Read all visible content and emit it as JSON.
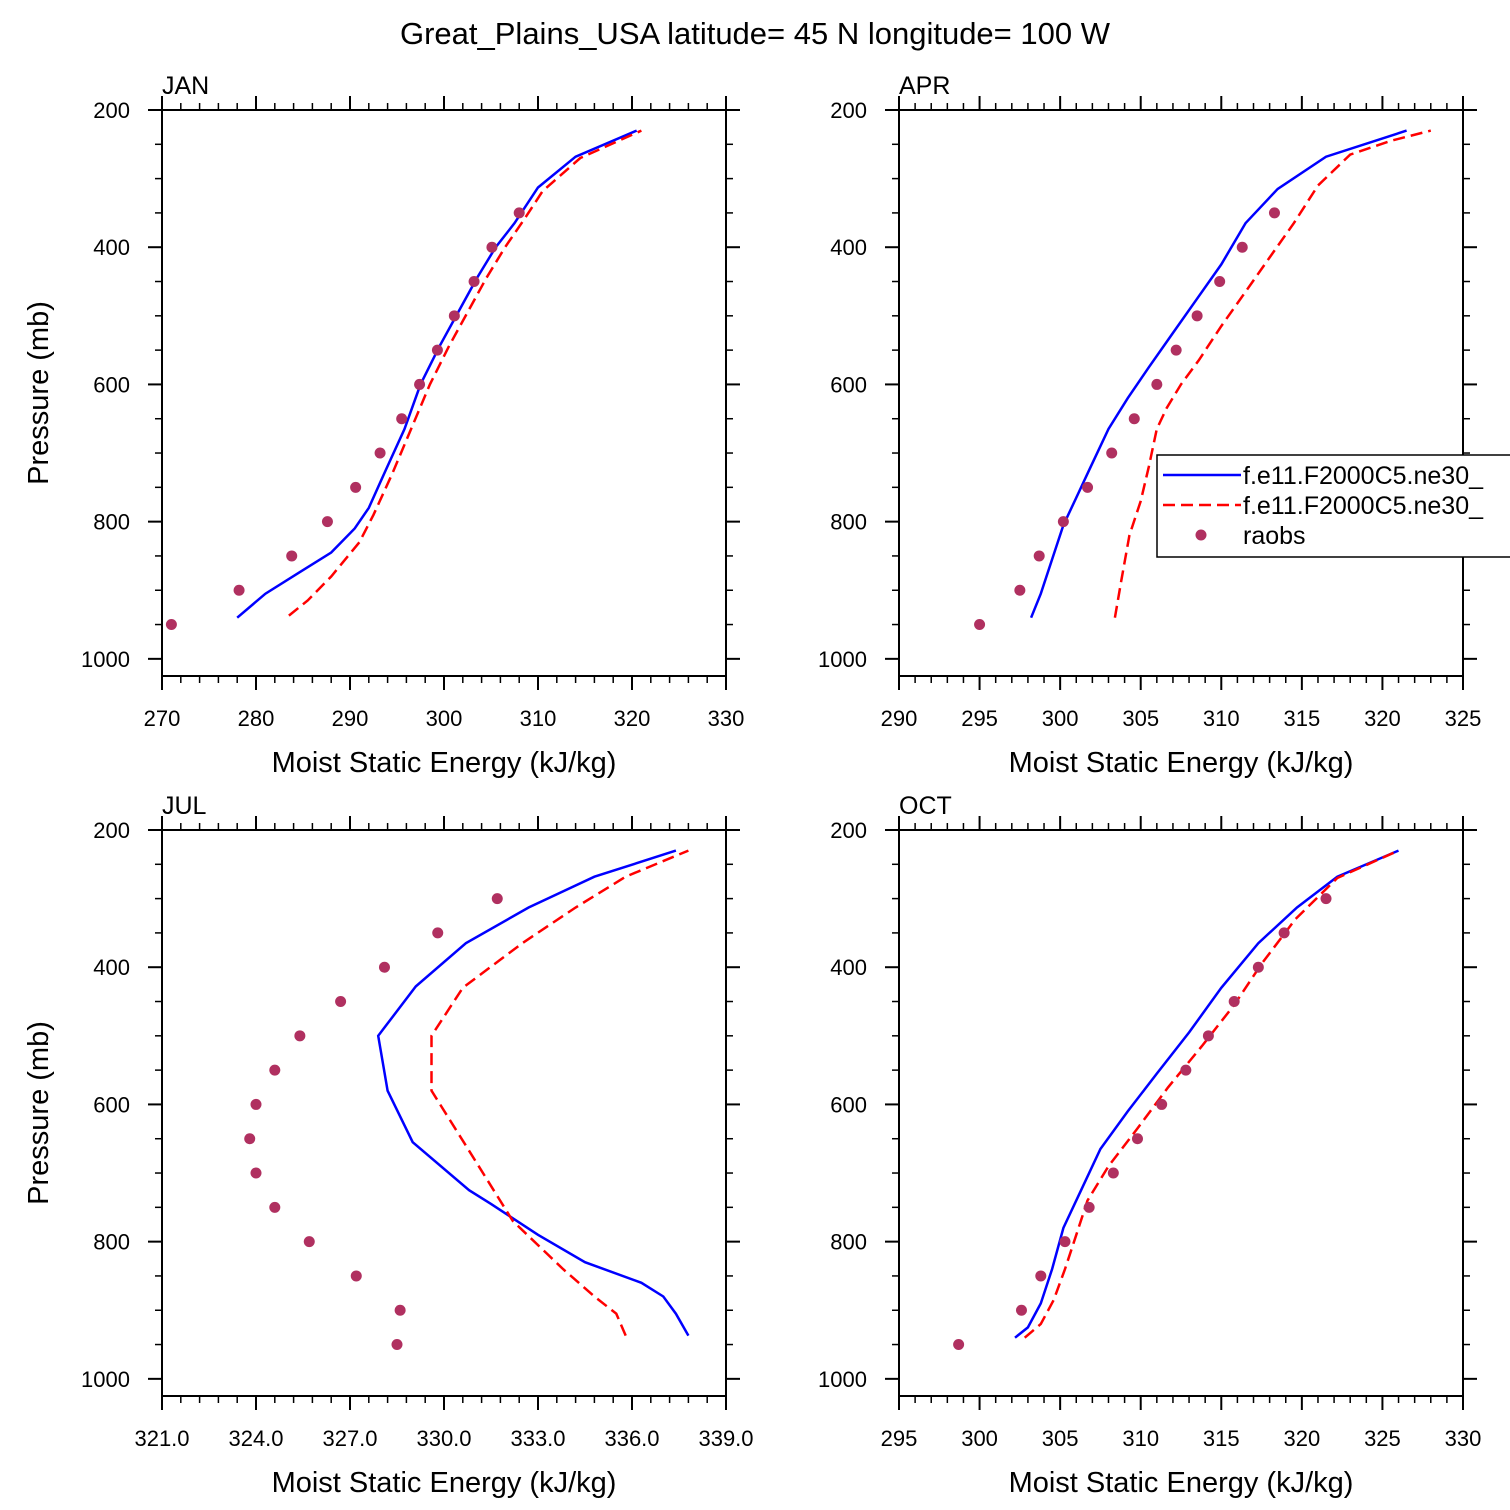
{
  "title": "Great_Plains_USA  latitude= 45 N longitude= 100 W",
  "colors": {
    "model1": "#0000ff",
    "model2": "#ff0000",
    "raobs": "#b03060",
    "axis": "#000000"
  },
  "legend": {
    "location": "right of APR panel",
    "entries": [
      {
        "label": "f.e11.F2000C5.ne30_",
        "style": "solid",
        "color": "#0000ff"
      },
      {
        "label": "f.e11.F2000C5.ne30_",
        "style": "dashed",
        "color": "#ff0000"
      },
      {
        "label": "raobs",
        "style": "marker",
        "color": "#b03060"
      }
    ]
  },
  "chart_data": [
    {
      "type": "line",
      "panel": "JAN",
      "title": "JAN",
      "xlabel": "Moist Static Energy (kJ/kg)",
      "ylabel": "Pressure (mb)",
      "xlim": [
        270,
        330
      ],
      "ylim": [
        1025,
        200
      ],
      "y_reversed": true,
      "xticks": [
        270,
        280,
        290,
        300,
        310,
        320,
        330
      ],
      "xtick_labels": [
        "270",
        "280",
        "290",
        "300",
        "310",
        "320",
        "330"
      ],
      "yticks": [
        200,
        400,
        600,
        800,
        1000
      ],
      "ytick_labels": [
        "200",
        "400",
        "600",
        "800",
        "1000"
      ],
      "series": [
        {
          "name": "f.e11.F2000C5.ne30_ (solid)",
          "style": "solid",
          "color": "#0000ff",
          "x": [
            278.0,
            281.0,
            284.5,
            288.0,
            290.5,
            292.0,
            293.8,
            295.8,
            297.5,
            299.5,
            301.5,
            303.5,
            305.5,
            307.5,
            310.0,
            314.0,
            320.5
          ],
          "y": [
            940,
            905,
            875,
            845,
            810,
            780,
            725,
            665,
            600,
            545,
            495,
            445,
            400,
            365,
            313,
            268,
            230
          ]
        },
        {
          "name": "f.e11.F2000C5.ne30_ (dashed)",
          "style": "dashed",
          "color": "#ff0000",
          "x": [
            283.5,
            285.5,
            288.0,
            291.0,
            292.5,
            294.5,
            296.5,
            298.5,
            300.5,
            302.5,
            304.5,
            306.5,
            308.5,
            310.5,
            314.5,
            321.0
          ],
          "y": [
            937,
            915,
            880,
            830,
            790,
            730,
            665,
            600,
            545,
            495,
            445,
            400,
            360,
            318,
            270,
            230
          ]
        }
      ],
      "points": {
        "name": "raobs",
        "x": [
          271.0,
          278.2,
          283.8,
          287.6,
          290.6,
          293.2,
          295.5,
          297.4,
          299.3,
          301.1,
          303.2,
          305.1,
          308.0
        ],
        "y": [
          950,
          900,
          850,
          800,
          750,
          700,
          650,
          600,
          550,
          500,
          450,
          400,
          350
        ]
      }
    },
    {
      "type": "line",
      "panel": "APR",
      "title": "APR",
      "xlabel": "Moist Static Energy (kJ/kg)",
      "ylabel": "",
      "xlim": [
        290,
        325
      ],
      "ylim": [
        1025,
        200
      ],
      "y_reversed": true,
      "xticks": [
        290,
        295,
        300,
        305,
        310,
        315,
        320,
        325
      ],
      "xtick_labels": [
        "290",
        "295",
        "300",
        "305",
        "310",
        "315",
        "320",
        "325"
      ],
      "yticks": [
        200,
        400,
        600,
        800,
        1000
      ],
      "ytick_labels": [
        "200",
        "400",
        "600",
        "800",
        "1000"
      ],
      "series": [
        {
          "name": "f.e11.F2000C5.ne30_ (solid)",
          "style": "solid",
          "color": "#0000ff",
          "x": [
            298.2,
            298.8,
            299.5,
            300.2,
            301.0,
            301.8,
            303.0,
            304.2,
            305.5,
            307.0,
            308.5,
            310.0,
            311.5,
            313.5,
            316.5,
            321.5
          ],
          "y": [
            940,
            905,
            855,
            805,
            765,
            725,
            665,
            620,
            575,
            525,
            475,
            425,
            365,
            315,
            268,
            230
          ]
        },
        {
          "name": "f.e11.F2000C5.ne30_ (dashed)",
          "style": "dashed",
          "color": "#ff0000",
          "x": [
            303.4,
            303.8,
            304.3,
            305.0,
            305.5,
            306.0,
            306.6,
            307.5,
            308.6,
            310.0,
            311.5,
            313.0,
            314.5,
            316.0,
            318.0,
            320.5,
            323.0
          ],
          "y": [
            940,
            885,
            820,
            770,
            720,
            665,
            635,
            600,
            565,
            515,
            465,
            415,
            365,
            310,
            265,
            245,
            230
          ]
        }
      ],
      "points": {
        "name": "raobs",
        "x": [
          295.0,
          297.5,
          298.7,
          300.2,
          301.7,
          303.2,
          304.6,
          306.0,
          307.2,
          308.5,
          309.9,
          311.3,
          313.3
        ],
        "y": [
          950,
          900,
          850,
          800,
          750,
          700,
          650,
          600,
          550,
          500,
          450,
          400,
          350
        ]
      }
    },
    {
      "type": "line",
      "panel": "JUL",
      "title": "JUL",
      "xlabel": "Moist Static Energy (kJ/kg)",
      "ylabel": "Pressure (mb)",
      "xlim": [
        321.0,
        339.0
      ],
      "ylim": [
        1025,
        200
      ],
      "y_reversed": true,
      "xticks": [
        321,
        324,
        327,
        330,
        333,
        336,
        339
      ],
      "xtick_labels": [
        "321.0",
        "324.0",
        "327.0",
        "330.0",
        "333.0",
        "336.0",
        "339.0"
      ],
      "yticks": [
        200,
        400,
        600,
        800,
        1000
      ],
      "ytick_labels": [
        "200",
        "400",
        "600",
        "800",
        "1000"
      ],
      "series": [
        {
          "name": "f.e11.F2000C5.ne30_ (solid)",
          "style": "solid",
          "color": "#0000ff",
          "x": [
            337.8,
            337.4,
            337.0,
            336.3,
            334.5,
            333.0,
            331.5,
            330.8,
            329.0,
            328.2,
            327.9,
            329.1,
            330.7,
            332.7,
            334.8,
            337.4
          ],
          "y": [
            937,
            905,
            880,
            860,
            830,
            790,
            745,
            725,
            655,
            580,
            500,
            428,
            365,
            313,
            268,
            230
          ]
        },
        {
          "name": "f.e11.F2000C5.ne30_ (dashed)",
          "style": "dashed",
          "color": "#ff0000",
          "x": [
            335.8,
            335.5,
            334.8,
            333.8,
            332.2,
            330.7,
            329.6,
            329.6,
            330.6,
            332.5,
            334.2,
            335.8,
            337.8
          ],
          "y": [
            937,
            905,
            880,
            840,
            770,
            660,
            580,
            500,
            430,
            365,
            313,
            268,
            230
          ]
        }
      ],
      "points": {
        "name": "raobs",
        "x": [
          328.5,
          328.6,
          327.2,
          325.7,
          324.6,
          324.0,
          323.8,
          324.0,
          324.6,
          325.4,
          326.7,
          328.1,
          329.8,
          331.7
        ],
        "y": [
          950,
          900,
          850,
          800,
          750,
          700,
          650,
          600,
          550,
          500,
          450,
          400,
          350,
          300
        ]
      }
    },
    {
      "type": "line",
      "panel": "OCT",
      "title": "OCT",
      "xlabel": "Moist Static Energy (kJ/kg)",
      "ylabel": "",
      "xlim": [
        295,
        330
      ],
      "ylim": [
        1025,
        200
      ],
      "y_reversed": true,
      "xticks": [
        295,
        300,
        305,
        310,
        315,
        320,
        325,
        330
      ],
      "xtick_labels": [
        "295",
        "300",
        "305",
        "310",
        "315",
        "320",
        "325",
        "330"
      ],
      "yticks": [
        200,
        400,
        600,
        800,
        1000
      ],
      "ytick_labels": [
        "200",
        "400",
        "600",
        "800",
        "1000"
      ],
      "series": [
        {
          "name": "f.e11.F2000C5.ne30_ (solid)",
          "style": "solid",
          "color": "#0000ff",
          "x": [
            302.2,
            303.0,
            303.8,
            304.5,
            305.2,
            306.3,
            307.5,
            309.2,
            311.0,
            313.0,
            315.0,
            317.3,
            319.7,
            322.2,
            326.0
          ],
          "y": [
            940,
            925,
            890,
            840,
            780,
            725,
            665,
            610,
            555,
            495,
            430,
            365,
            313,
            268,
            230
          ]
        },
        {
          "name": "f.e11.F2000C5.ne30_ (dashed)",
          "style": "dashed",
          "color": "#ff0000",
          "x": [
            302.8,
            303.8,
            304.6,
            305.3,
            306.0,
            306.7,
            308.0,
            309.8,
            311.7,
            313.8,
            315.8,
            317.5,
            319.6,
            322.2,
            326.0
          ],
          "y": [
            940,
            920,
            885,
            840,
            790,
            740,
            690,
            635,
            575,
            515,
            455,
            395,
            330,
            270,
            230
          ]
        }
      ],
      "points": {
        "name": "raobs",
        "x": [
          298.7,
          302.6,
          303.8,
          305.3,
          306.8,
          308.3,
          309.8,
          311.3,
          312.8,
          314.2,
          315.8,
          317.3,
          318.9,
          321.5
        ],
        "y": [
          950,
          900,
          850,
          800,
          750,
          700,
          650,
          600,
          550,
          500,
          450,
          400,
          350,
          300
        ]
      }
    }
  ]
}
